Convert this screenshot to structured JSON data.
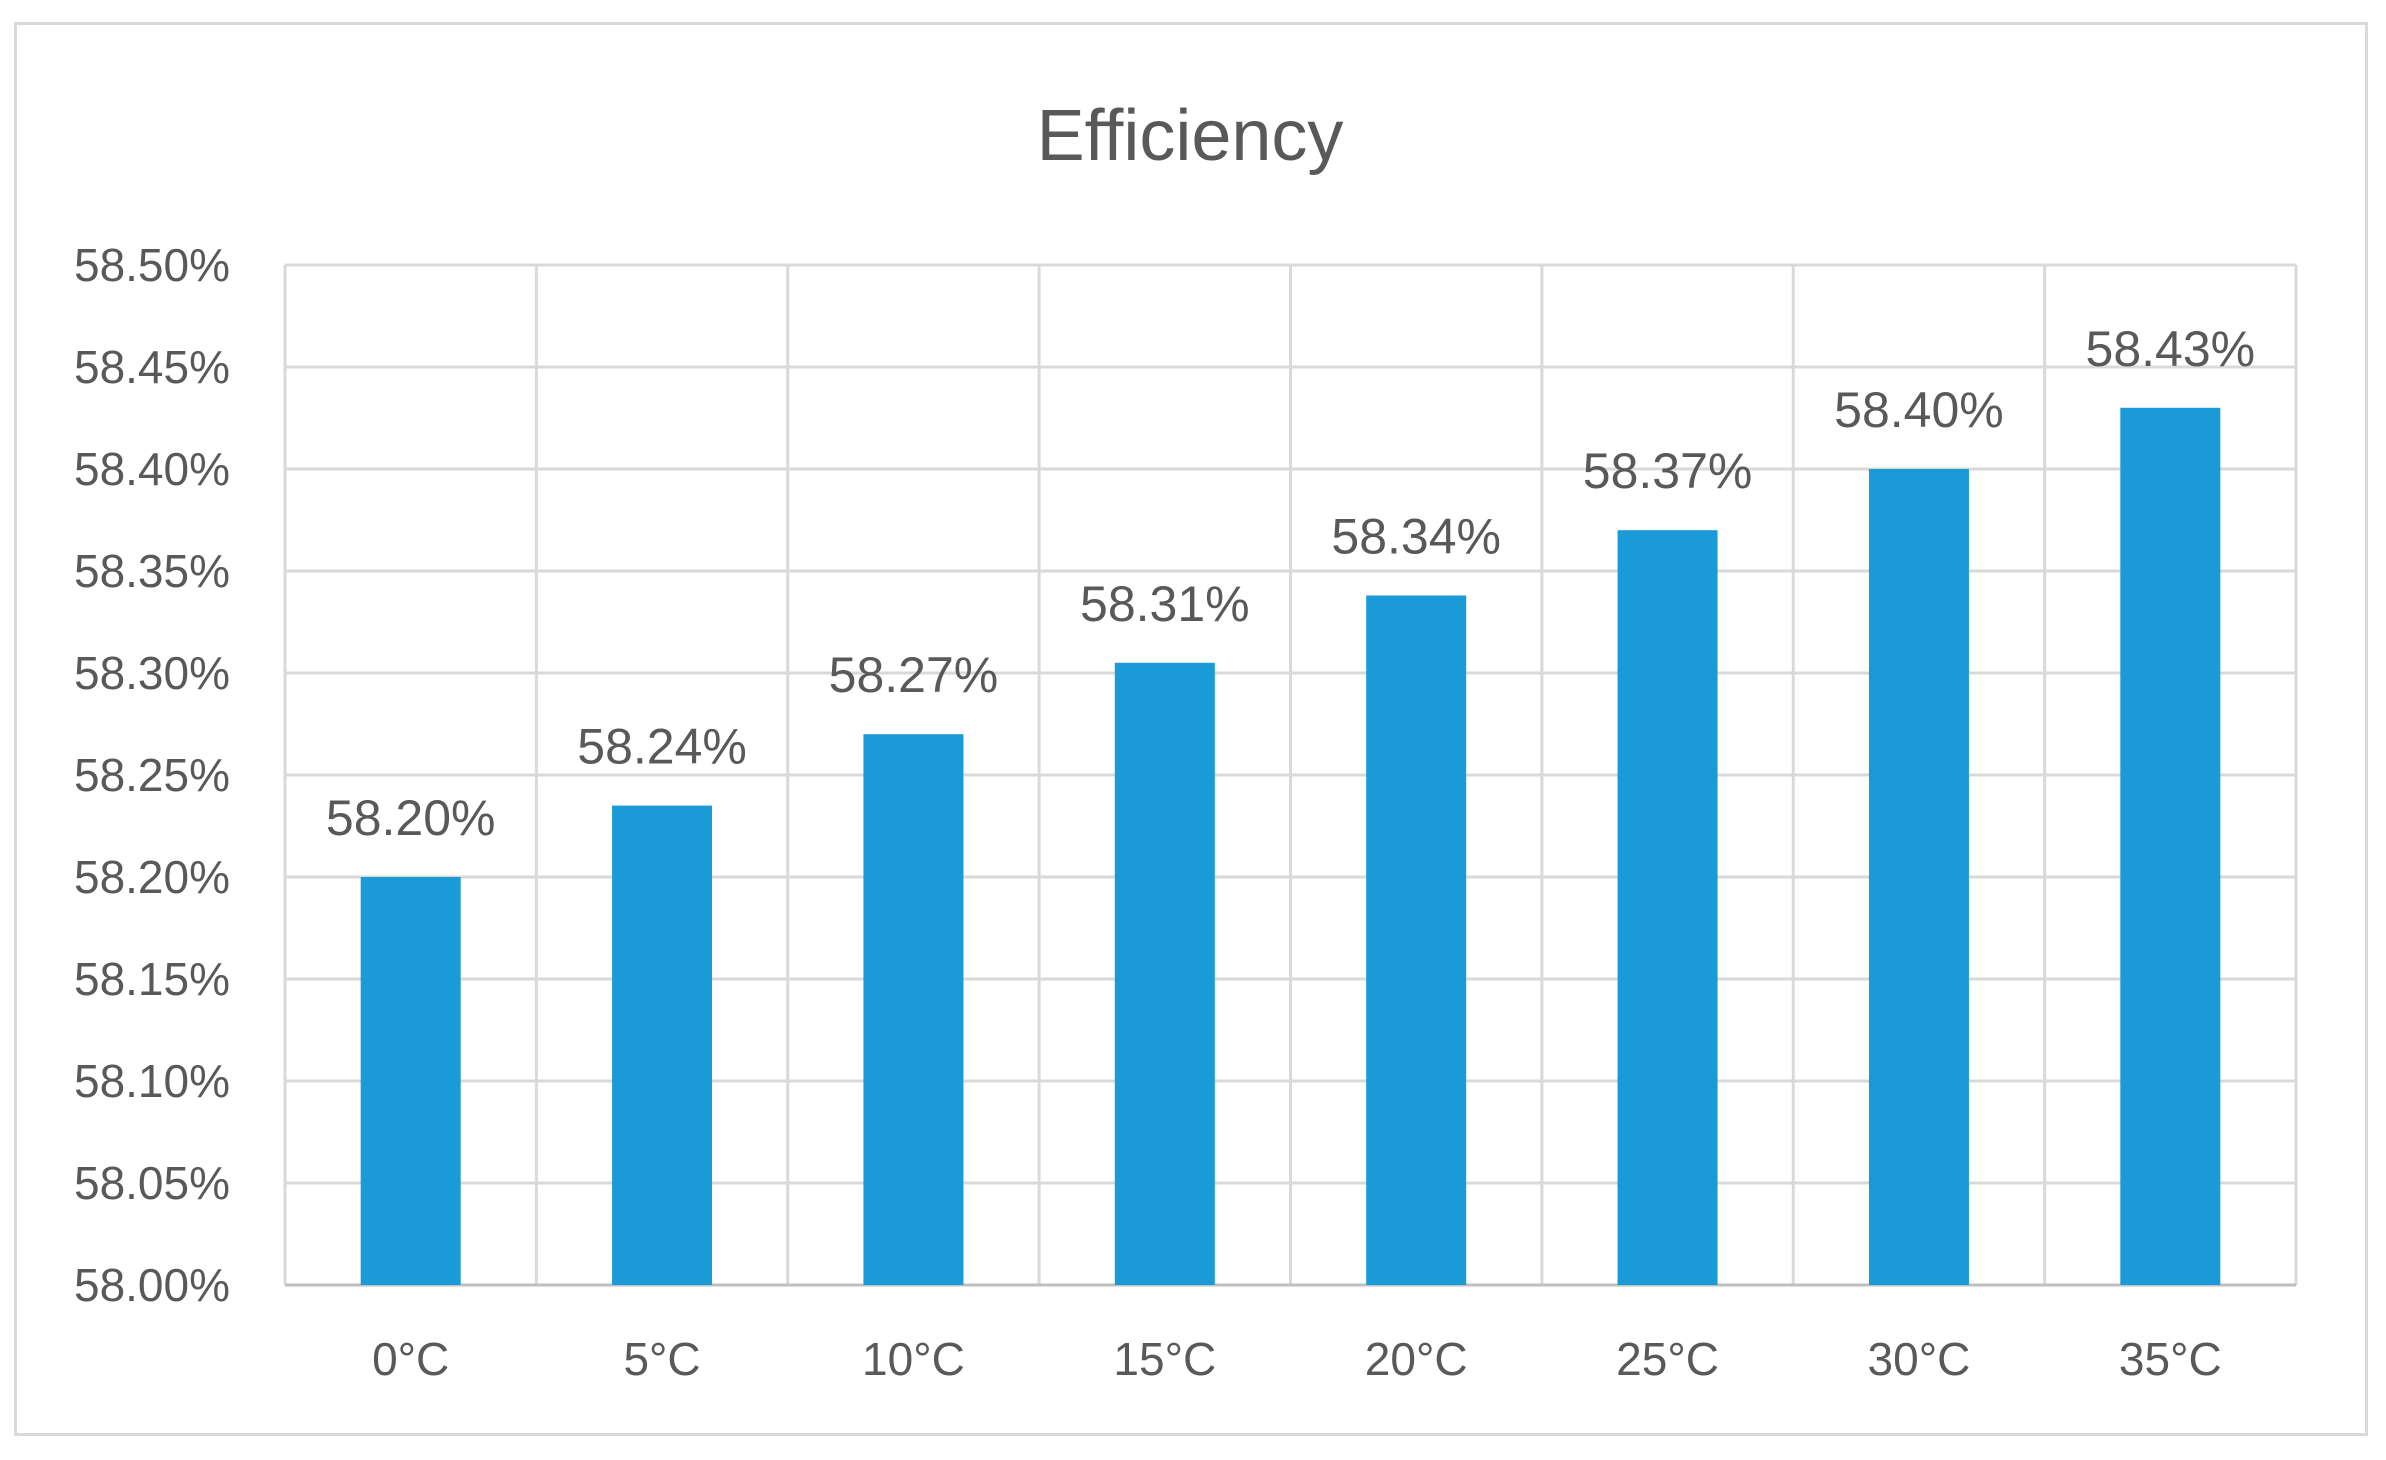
{
  "colors": {
    "bar": "#1a9ad6",
    "grid": "#d9d9d9",
    "text": "#595959",
    "frame": "#d9d9d9"
  },
  "chart_data": {
    "type": "bar",
    "title": "Efficiency",
    "xlabel": "",
    "ylabel": "",
    "categories": [
      "0°C",
      "5°C",
      "10°C",
      "15°C",
      "20°C",
      "25°C",
      "30°C",
      "35°C"
    ],
    "values": [
      58.2,
      58.235,
      58.27,
      58.305,
      58.338,
      58.37,
      58.4,
      58.43
    ],
    "data_labels": [
      "58.20%",
      "58.24%",
      "58.27%",
      "58.31%",
      "58.34%",
      "58.37%",
      "58.40%",
      "58.43%"
    ],
    "ylim": [
      58.0,
      58.5
    ],
    "yticks": [
      "58.00%",
      "58.05%",
      "58.10%",
      "58.15%",
      "58.20%",
      "58.25%",
      "58.30%",
      "58.35%",
      "58.40%",
      "58.45%",
      "58.50%"
    ],
    "grid": true,
    "legend": "none"
  }
}
